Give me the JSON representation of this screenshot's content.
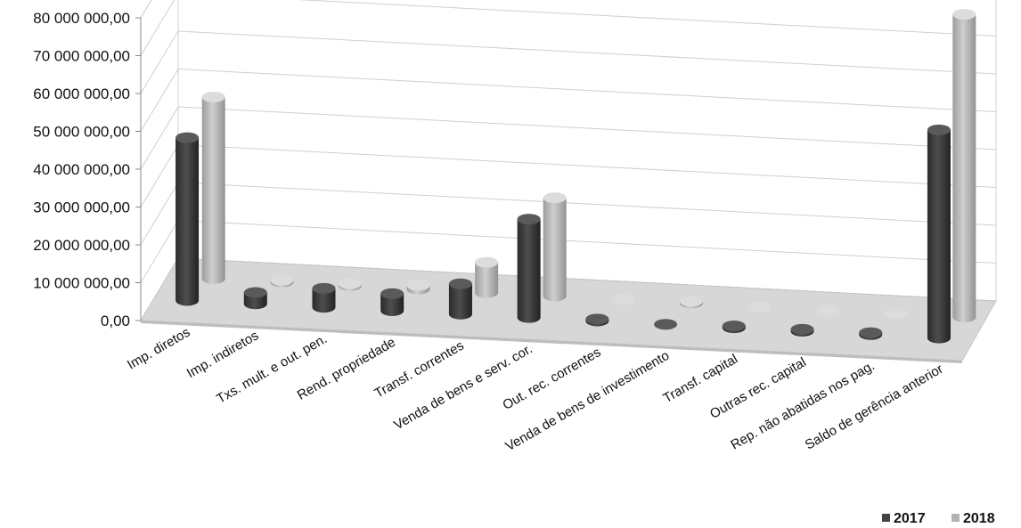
{
  "chart_data": {
    "type": "bar",
    "title": "",
    "xlabel": "",
    "ylabel": "",
    "ylim": [
      0,
      80000000
    ],
    "yticks": [
      "0,00",
      "10 000 000,00",
      "20 000 000,00",
      "30 000 000,00",
      "40 000 000,00",
      "50 000 000,00",
      "60 000 000,00",
      "70 000 000,00",
      "80 000 000,00"
    ],
    "categories": [
      "Imp. diretos",
      "Imp. indiretos",
      "Txs. mult. e out. pen.",
      "Rend. propriedade",
      "Transf. correntes",
      "Venda de bens e serv. cor.",
      "Out. rec. correntes",
      "Venda de bens de investimento",
      "Transf. capital",
      "Outras rec. capital",
      "Rep. não abatidas nos pag.",
      "Saldo de gerência anterior"
    ],
    "series": [
      {
        "name": "2017",
        "color": "#444444",
        "values": [
          43000000,
          3000000,
          5000000,
          4500000,
          8000000,
          26000000,
          500000,
          0,
          500000,
          500000,
          500000,
          55000000
        ]
      },
      {
        "name": "2018",
        "color": "#b3b3b3",
        "values": [
          48000000,
          500000,
          500000,
          1000000,
          8000000,
          26000000,
          0,
          500000,
          0,
          0,
          0,
          80000000
        ]
      }
    ],
    "grid": true,
    "legend_position": "bottom-right",
    "projection": "3d"
  }
}
